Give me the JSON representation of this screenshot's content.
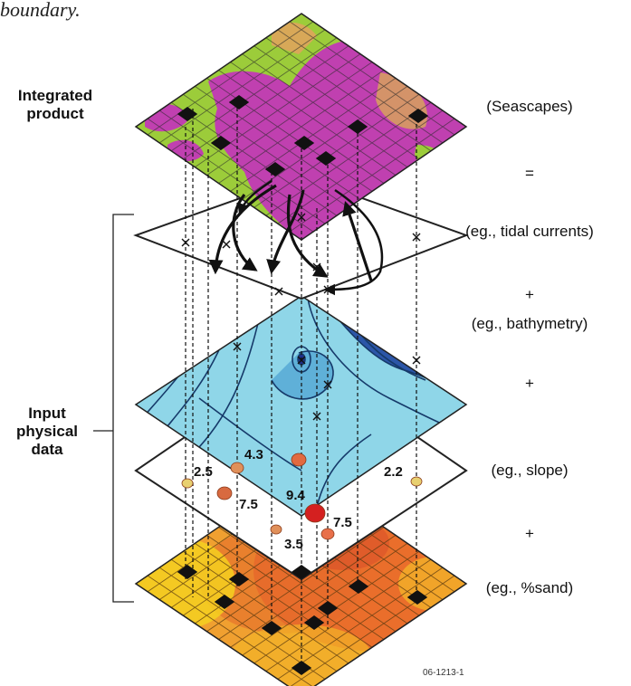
{
  "top_fragment": "boundary.",
  "left_labels": {
    "integrated": "Integrated\nproduct",
    "input": "Input\nphysical\ndata"
  },
  "right_labels": [
    "(Seascapes)",
    "=",
    "(eg., tidal currents)",
    "+",
    "(eg., bathymetry)",
    "+",
    "(eg., slope)",
    "+",
    "(eg., %sand)"
  ],
  "slope_values": [
    "2.5",
    "4.3",
    "7.5",
    "9.4",
    "7.5",
    "3.5",
    "2.2"
  ],
  "figure_code": "06-1213-1",
  "colors": {
    "seascape_green": "#9ccc3a",
    "seascape_magenta": "#c040b0",
    "bathymetry_light": "#8fd6e8",
    "bathymetry_dark": "#1f2f8a",
    "sand_yellow": "#f5d020",
    "sand_orange": "#e8622a",
    "point_red": "#d42020"
  }
}
